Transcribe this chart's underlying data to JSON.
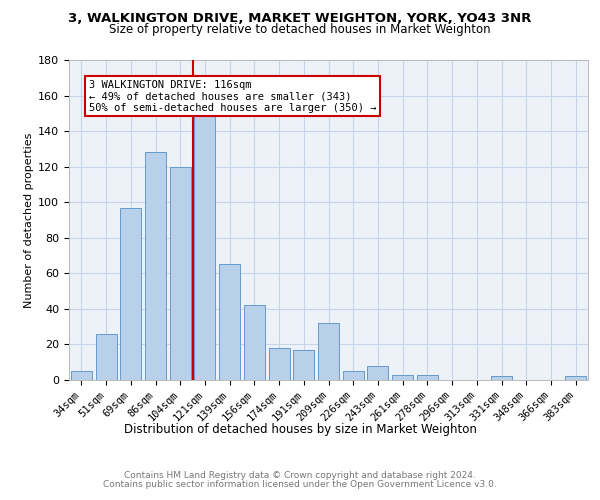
{
  "title_line1": "3, WALKINGTON DRIVE, MARKET WEIGHTON, YORK, YO43 3NR",
  "title_line2": "Size of property relative to detached houses in Market Weighton",
  "xlabel": "Distribution of detached houses by size in Market Weighton",
  "ylabel": "Number of detached properties",
  "categories": [
    "34sqm",
    "51sqm",
    "69sqm",
    "86sqm",
    "104sqm",
    "121sqm",
    "139sqm",
    "156sqm",
    "174sqm",
    "191sqm",
    "209sqm",
    "226sqm",
    "243sqm",
    "261sqm",
    "278sqm",
    "296sqm",
    "313sqm",
    "331sqm",
    "348sqm",
    "366sqm",
    "383sqm"
  ],
  "values": [
    5,
    26,
    97,
    128,
    120,
    150,
    65,
    42,
    18,
    17,
    32,
    5,
    8,
    3,
    3,
    0,
    0,
    2,
    0,
    0,
    2
  ],
  "bar_color": "#b8d0ea",
  "bar_edgecolor": "#6699cc",
  "vline_color": "#cc0000",
  "annotation_text": "3 WALKINGTON DRIVE: 116sqm\n← 49% of detached houses are smaller (343)\n50% of semi-detached houses are larger (350) →",
  "annotation_box_edgecolor": "#cc0000",
  "ylim": [
    0,
    180
  ],
  "yticks": [
    0,
    20,
    40,
    60,
    80,
    100,
    120,
    140,
    160,
    180
  ],
  "footer_line1": "Contains HM Land Registry data © Crown copyright and database right 2024.",
  "footer_line2": "Contains public sector information licensed under the Open Government Licence v3.0.",
  "grid_color": "#c8d4e8",
  "background_color": "#edf2f9",
  "title_fontsize": 9.5,
  "subtitle_fontsize": 8.5,
  "ylabel_fontsize": 8.0,
  "xlabel_fontsize": 8.5,
  "tick_fontsize": 7.5,
  "footer_fontsize": 6.5,
  "annotation_fontsize": 7.5
}
